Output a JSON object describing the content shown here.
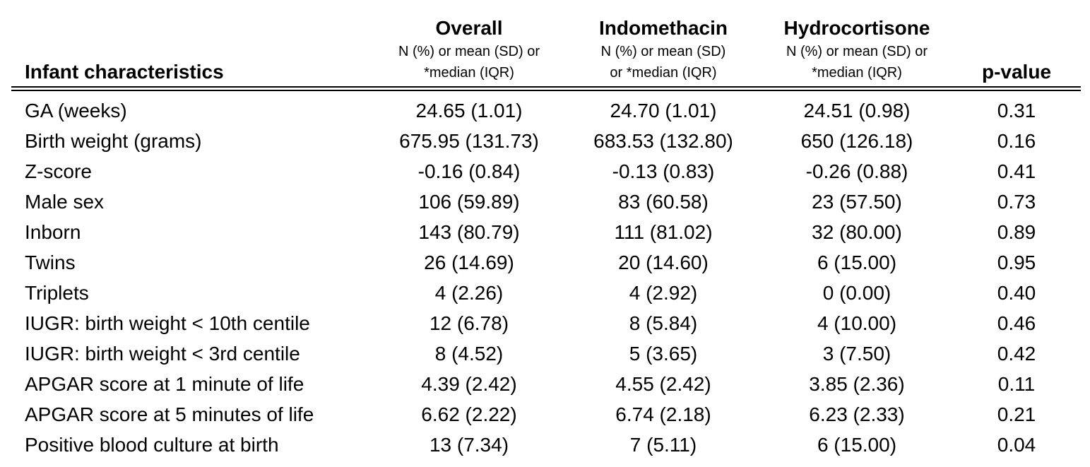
{
  "header": {
    "label": "Infant characteristics",
    "overall_title": "Overall",
    "overall_sub": "N (%) or mean (SD) or\n*median (IQR)",
    "indo_title": "Indomethacin",
    "indo_sub": "N (%) or mean (SD)\nor *median (IQR)",
    "hydro_title": "Hydrocortisone",
    "hydro_sub": "N (%) or mean (SD) or\n*median (IQR)",
    "p_label": "p-value"
  },
  "rows": [
    {
      "label": "GA (weeks)",
      "overall": "24.65 (1.01)",
      "indo": "24.70 (1.01)",
      "hydro": "24.51 (0.98)",
      "p": "0.31"
    },
    {
      "label": "Birth weight (grams)",
      "overall": "675.95 (131.73)",
      "indo": "683.53 (132.80)",
      "hydro": "650 (126.18)",
      "p": "0.16"
    },
    {
      "label": "Z-score",
      "overall": "-0.16 (0.84)",
      "indo": "-0.13 (0.83)",
      "hydro": "-0.26 (0.88)",
      "p": "0.41"
    },
    {
      "label": "Male sex",
      "overall": "106 (59.89)",
      "indo": "83 (60.58)",
      "hydro": "23 (57.50)",
      "p": "0.73"
    },
    {
      "label": "Inborn",
      "overall": "143 (80.79)",
      "indo": "111 (81.02)",
      "hydro": "32 (80.00)",
      "p": "0.89"
    },
    {
      "label": "Twins",
      "overall": "26 (14.69)",
      "indo": "20 (14.60)",
      "hydro": "6 (15.00)",
      "p": "0.95"
    },
    {
      "label": "Triplets",
      "overall": "4 (2.26)",
      "indo": "4 (2.92)",
      "hydro": "0 (0.00)",
      "p": "0.40"
    },
    {
      "label": "IUGR: birth weight < 10th centile",
      "overall": "12 (6.78)",
      "indo": "8 (5.84)",
      "hydro": "4 (10.00)",
      "p": "0.46"
    },
    {
      "label": "IUGR: birth weight < 3rd centile",
      "overall": "8 (4.52)",
      "indo": "5 (3.65)",
      "hydro": "3 (7.50)",
      "p": "0.42"
    },
    {
      "label": "APGAR score at 1 minute of life",
      "overall": "4.39 (2.42)",
      "indo": "4.55 (2.42)",
      "hydro": "3.85 (2.36)",
      "p": "0.11"
    },
    {
      "label": "APGAR score at 5 minutes of life",
      "overall": "6.62 (2.22)",
      "indo": "6.74 (2.18)",
      "hydro": "6.23 (2.33)",
      "p": "0.21"
    },
    {
      "label": "Positive blood culture at birth",
      "overall": "13 (7.34)",
      "indo": "7 (5.11)",
      "hydro": "6 (15.00)",
      "p": "0.04"
    }
  ]
}
